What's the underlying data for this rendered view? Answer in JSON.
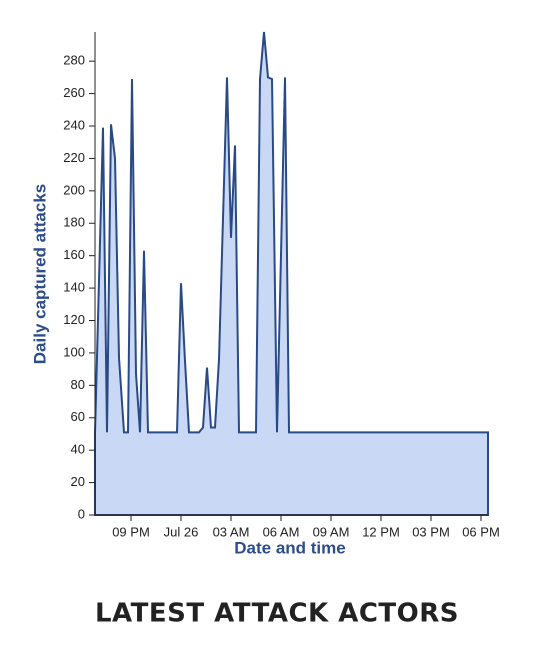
{
  "chart_data": {
    "type": "area",
    "x_label": "Date and time",
    "y_label": "Daily captured attacks",
    "x": [
      -5.16,
      -4.68,
      -4.44,
      -4.2,
      -3.96,
      -3.72,
      -3.42,
      -3.18,
      -2.94,
      -2.7,
      -2.46,
      -2.22,
      -1.98,
      -0.24,
      0,
      0.24,
      0.48,
      1.08,
      1.32,
      1.56,
      1.8,
      2.04,
      2.28,
      2.76,
      3,
      3.24,
      3.48,
      4.5,
      4.74,
      4.98,
      5.22,
      5.46,
      5.76,
      6.24,
      6.48,
      18.42
    ],
    "values": [
      50,
      239,
      51,
      241,
      220,
      97,
      51,
      51,
      269,
      87,
      51,
      163,
      51,
      51,
      143,
      95,
      51,
      51,
      54,
      91,
      54,
      54,
      96,
      270,
      171,
      228,
      51,
      51,
      269,
      298,
      270,
      269,
      51,
      270,
      51,
      51
    ],
    "color": "#2a4a86",
    "fill": "#c9d9f5",
    "xlim": [
      -5.16,
      18.42
    ],
    "xticks": [
      {
        "value": -3,
        "label": "09 PM"
      },
      {
        "value": 0,
        "label": "Jul 26"
      },
      {
        "value": 3,
        "label": "03 AM"
      },
      {
        "value": 6,
        "label": "06 AM"
      },
      {
        "value": 9,
        "label": "09 AM"
      },
      {
        "value": 12,
        "label": "12 PM"
      },
      {
        "value": 15,
        "label": "03 PM"
      },
      {
        "value": 18,
        "label": "06 PM"
      }
    ],
    "ylim": [
      0,
      298
    ],
    "yticks": [
      0,
      20,
      40,
      60,
      80,
      100,
      120,
      140,
      160,
      180,
      200,
      220,
      240,
      260,
      280
    ],
    "grid": false
  },
  "heading": "LATEST ATTACK ACTORS"
}
